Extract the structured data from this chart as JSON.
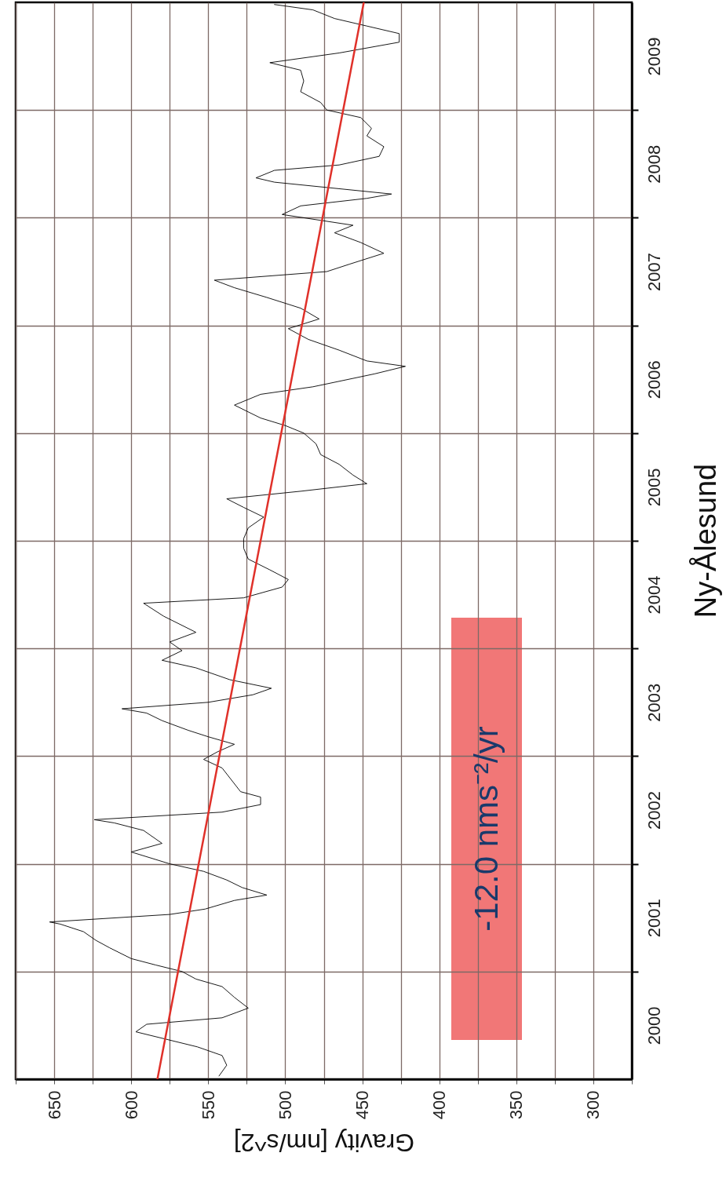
{
  "chart_data": {
    "type": "line",
    "title": "Ny-Ålesund",
    "xlabel": "Gravity [nm/s^2]",
    "annotations": [
      "-12.0 nms⁻²/yr"
    ],
    "grid": true,
    "line_style": "solid",
    "xlim": [
      675,
      275
    ],
    "ylim": [
      2000,
      2010
    ],
    "xticks": [
      {
        "value": 675,
        "label": null
      },
      650,
      {
        "value": 625,
        "label": null
      },
      600,
      {
        "value": 575,
        "label": null
      },
      550,
      {
        "value": 525,
        "label": null
      },
      500,
      {
        "value": 475,
        "label": null
      },
      450,
      {
        "value": 425,
        "label": null
      },
      400,
      {
        "value": 375,
        "label": null
      },
      350,
      {
        "value": 325,
        "label": null
      },
      300,
      {
        "value": 275,
        "label": null
      }
    ],
    "yticks": [
      {
        "value": 2000.5,
        "label": "2000"
      },
      {
        "value": 2001,
        "label": null
      },
      {
        "value": 2001.5,
        "label": "2001"
      },
      {
        "value": 2002,
        "label": null
      },
      {
        "value": 2002.5,
        "label": "2002"
      },
      {
        "value": 2003,
        "label": null
      },
      {
        "value": 2003.5,
        "label": "2003"
      },
      {
        "value": 2004,
        "label": null
      },
      {
        "value": 2004.5,
        "label": "2004"
      },
      {
        "value": 2005,
        "label": null
      },
      {
        "value": 2005.5,
        "label": "2005"
      },
      {
        "value": 2006,
        "label": null
      },
      {
        "value": 2006.5,
        "label": "2006"
      },
      {
        "value": 2007,
        "label": null
      },
      {
        "value": 2007.5,
        "label": "2007"
      },
      {
        "value": 2008,
        "label": null
      },
      {
        "value": 2008.5,
        "label": "2008"
      },
      {
        "value": 2009,
        "label": null
      },
      {
        "value": 2009.5,
        "label": "2009"
      }
    ],
    "series": [
      {
        "color": "#000000",
        "values": [
          2000.03,
          2000.13,
          2000.22,
          2000.3,
          2000.44,
          2000.51,
          2000.57,
          2000.66,
          2000.76,
          2000.86,
          2000.93,
          2001.0,
          2001.06,
          2001.12,
          2001.22,
          2001.29,
          2001.37,
          2001.44,
          2001.46,
          2001.53,
          2001.58,
          2001.66,
          2001.71,
          2001.78,
          2001.85,
          2001.93,
          2002.0,
          2002.11,
          2002.19,
          2002.31,
          2002.38,
          2002.41,
          2002.48,
          2002.55,
          2002.62,
          2002.67,
          2002.89,
          2002.97,
          2003.04,
          2003.11,
          2003.18,
          2003.24,
          2003.33,
          2003.4,
          2003.44,
          2003.5,
          2003.57,
          2003.63,
          2003.71,
          2003.82,
          2003.89,
          2003.98,
          2004.06,
          2004.15,
          2004.3,
          2004.42,
          2004.47,
          2004.57,
          2004.64,
          2004.73,
          2004.83,
          2004.93,
          2005.02,
          2005.12,
          2005.22,
          2005.31,
          2005.39,
          2005.46,
          2005.53,
          2005.61,
          2005.71,
          2005.8,
          2005.9,
          2006.0,
          2006.07,
          2006.14,
          2006.26,
          2006.36,
          2006.43,
          2006.55,
          2006.62,
          2006.67,
          2006.77,
          2006.87,
          2006.97,
          2007.06,
          2007.16,
          2007.26,
          2007.35,
          2007.42,
          2007.5,
          2007.57,
          2007.67,
          2007.77,
          2007.86,
          2007.93,
          2008.03,
          2008.11,
          2008.18,
          2008.22,
          2008.33,
          2008.37,
          2008.44,
          2008.49,
          2008.57,
          2008.66,
          2008.76,
          2008.83,
          2008.93,
          2009.0,
          2009.07,
          2009.17,
          2009.27,
          2009.37,
          2009.44,
          2009.53,
          2009.63,
          2009.71,
          2009.78,
          2009.85,
          2009.93,
          2009.98
        ],
        "x": [
          543,
          538,
          541,
          557,
          597,
          590,
          541,
          524,
          533,
          541,
          558,
          567,
          584,
          600,
          614,
          623,
          631,
          646,
          653,
          575,
          552,
          533,
          512,
          528,
          538,
          553,
          575,
          600,
          580,
          592,
          611,
          624,
          541,
          516,
          516,
          529,
          541,
          553,
          544,
          533,
          550,
          563,
          580,
          590,
          606,
          550,
          521,
          509,
          536,
          558,
          580,
          567,
          575,
          558,
          579,
          592,
          527,
          502,
          498,
          510,
          524,
          527,
          527,
          524,
          514,
          527,
          538,
          490,
          447,
          456,
          465,
          477,
          480,
          488,
          500,
          516,
          533,
          516,
          482,
          442,
          422,
          447,
          465,
          485,
          498,
          478,
          490,
          512,
          533,
          546,
          473,
          458,
          436,
          451,
          468,
          456,
          502,
          490,
          447,
          431,
          507,
          519,
          507,
          465,
          439,
          436,
          447,
          444,
          451,
          473,
          477,
          490,
          488,
          490,
          510,
          465,
          426,
          426,
          447,
          468,
          482,
          507
        ]
      },
      {
        "type": "line",
        "color": "#e0312a",
        "x": [
          583,
          449
        ],
        "values": [
          2000,
          2010
        ]
      }
    ]
  }
}
